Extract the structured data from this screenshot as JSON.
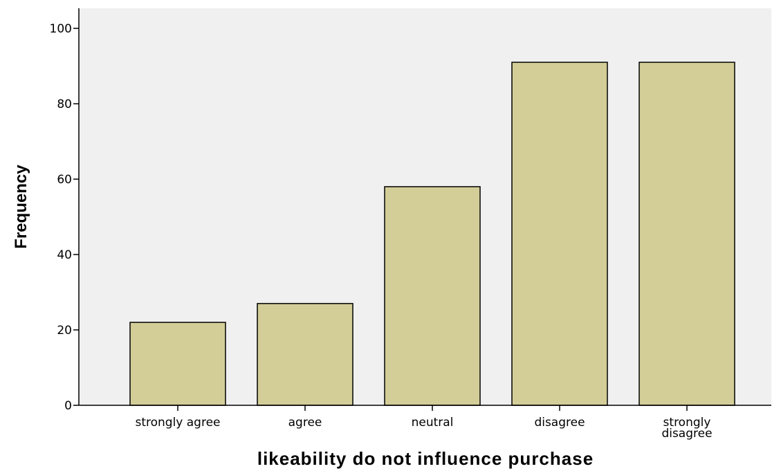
{
  "chart_data": {
    "type": "bar",
    "title": "",
    "xlabel": "likeability do not influence purchase",
    "ylabel": "Frequency",
    "categories": [
      "strongly agree",
      "agree",
      "neutral",
      "disagree",
      "strongly disagree"
    ],
    "values": [
      22,
      27,
      58,
      91,
      91
    ],
    "ylim": [
      0,
      100
    ],
    "yticks": [
      0,
      20,
      40,
      60,
      80,
      100
    ],
    "grid": false,
    "legend": "none",
    "colors": {
      "bar_fill": "#d3cd98",
      "bar_stroke": "#000000",
      "plot_background": "#f0f0f0",
      "axis": "#000000"
    }
  }
}
